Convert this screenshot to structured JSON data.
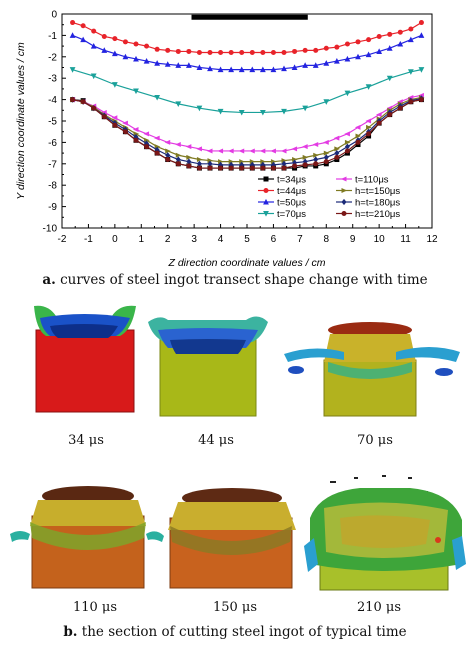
{
  "figure": {
    "caption_a_prefix": "a.",
    "caption_a_text": "curves of steel ingot transect shape change with time",
    "caption_b_prefix": "b.",
    "caption_b_text": "the section of cutting steel ingot of typical time",
    "panel_times": [
      "34 μs",
      "44 μs",
      "70 μs",
      "110 μs",
      "150 μs",
      "210 μs"
    ]
  },
  "chart_data": {
    "type": "line",
    "xlabel": "Z direction coordinate values / cm",
    "ylabel": "Y direction coordinate values / cm",
    "xlim": [
      -2,
      12
    ],
    "ylim": [
      -10,
      0
    ],
    "xticks": [
      -2,
      -1,
      0,
      1,
      2,
      3,
      4,
      5,
      6,
      7,
      8,
      9,
      10,
      11,
      12
    ],
    "yticks": [
      0,
      -1,
      -2,
      -3,
      -4,
      -5,
      -6,
      -7,
      -8,
      -9,
      -10
    ],
    "grid": false,
    "legend_position": "bottom-right",
    "scale_bar": {
      "from_x": 2.9,
      "to_x": 7.3,
      "y": -0.15
    },
    "series": [
      {
        "name": "t=34μs",
        "color": "#000000",
        "marker": "square",
        "x": [
          -1.6,
          -1.2,
          -0.8,
          -0.4,
          0,
          0.4,
          0.8,
          1.2,
          1.6,
          2.0,
          2.4,
          2.8,
          3.2,
          3.6,
          4.0,
          4.4,
          4.8,
          5.2,
          5.6,
          6.0,
          6.4,
          6.8,
          7.2,
          7.6,
          8.0,
          8.4,
          8.8,
          9.2,
          9.6,
          10.0,
          10.4,
          10.8,
          11.2,
          11.6
        ],
        "y": [
          -4.0,
          -4.05,
          -4.4,
          -4.8,
          -5.2,
          -5.5,
          -5.9,
          -6.2,
          -6.5,
          -6.8,
          -7.0,
          -7.1,
          -7.2,
          -7.2,
          -7.2,
          -7.2,
          -7.2,
          -7.2,
          -7.2,
          -7.2,
          -7.2,
          -7.2,
          -7.1,
          -7.1,
          -7.0,
          -6.8,
          -6.5,
          -6.1,
          -5.7,
          -5.1,
          -4.7,
          -4.4,
          -4.1,
          -4.0
        ]
      },
      {
        "name": "t=44μs",
        "color": "#e8232a",
        "marker": "circle",
        "x": [
          -1.6,
          -1.2,
          -0.8,
          -0.4,
          0,
          0.4,
          0.8,
          1.2,
          1.6,
          2.0,
          2.4,
          2.8,
          3.2,
          3.6,
          4.0,
          4.4,
          4.8,
          5.2,
          5.6,
          6.0,
          6.4,
          6.8,
          7.2,
          7.6,
          8.0,
          8.4,
          8.8,
          9.2,
          9.6,
          10.0,
          10.4,
          10.8,
          11.2,
          11.6
        ],
        "y": [
          -0.4,
          -0.55,
          -0.8,
          -1.05,
          -1.15,
          -1.3,
          -1.4,
          -1.5,
          -1.65,
          -1.7,
          -1.75,
          -1.75,
          -1.8,
          -1.8,
          -1.8,
          -1.8,
          -1.8,
          -1.8,
          -1.8,
          -1.8,
          -1.8,
          -1.75,
          -1.7,
          -1.7,
          -1.6,
          -1.55,
          -1.4,
          -1.3,
          -1.2,
          -1.05,
          -0.95,
          -0.85,
          -0.7,
          -0.4
        ]
      },
      {
        "name": "t=50μs",
        "color": "#2323e0",
        "marker": "triangle",
        "x": [
          -1.6,
          -1.2,
          -0.8,
          -0.4,
          0,
          0.4,
          0.8,
          1.2,
          1.6,
          2.0,
          2.4,
          2.8,
          3.2,
          3.6,
          4.0,
          4.4,
          4.8,
          5.2,
          5.6,
          6.0,
          6.4,
          6.8,
          7.2,
          7.6,
          8.0,
          8.4,
          8.8,
          9.2,
          9.6,
          10.0,
          10.4,
          10.8,
          11.2,
          11.6
        ],
        "y": [
          -1.0,
          -1.2,
          -1.5,
          -1.7,
          -1.85,
          -2.0,
          -2.1,
          -2.2,
          -2.3,
          -2.35,
          -2.4,
          -2.4,
          -2.5,
          -2.55,
          -2.6,
          -2.6,
          -2.6,
          -2.6,
          -2.6,
          -2.6,
          -2.55,
          -2.5,
          -2.4,
          -2.4,
          -2.3,
          -2.2,
          -2.1,
          -2.0,
          -1.9,
          -1.75,
          -1.6,
          -1.4,
          -1.2,
          -1.0
        ]
      },
      {
        "name": "t=70μs",
        "color": "#1aa19a",
        "marker": "triangle-down",
        "x": [
          -1.6,
          -0.8,
          0,
          0.8,
          1.6,
          2.4,
          3.2,
          4.0,
          4.8,
          5.6,
          6.4,
          7.2,
          8.0,
          8.8,
          9.6,
          10.4,
          11.2,
          11.6
        ],
        "y": [
          -2.6,
          -2.9,
          -3.3,
          -3.6,
          -3.9,
          -4.2,
          -4.4,
          -4.55,
          -4.6,
          -4.6,
          -4.55,
          -4.4,
          -4.1,
          -3.7,
          -3.4,
          -3.0,
          -2.7,
          -2.6
        ]
      },
      {
        "name": "t=110μs",
        "color": "#e33be3",
        "marker": "tri-left",
        "x": [
          -1.6,
          -1.2,
          -0.8,
          -0.4,
          0,
          0.4,
          0.8,
          1.2,
          1.6,
          2.0,
          2.4,
          2.8,
          3.2,
          3.6,
          4.0,
          4.4,
          4.8,
          5.2,
          5.6,
          6.0,
          6.4,
          6.8,
          7.2,
          7.6,
          8.0,
          8.4,
          8.8,
          9.2,
          9.6,
          10.0,
          10.4,
          10.8,
          11.2,
          11.6
        ],
        "y": [
          -4.0,
          -4.1,
          -4.3,
          -4.6,
          -4.85,
          -5.1,
          -5.4,
          -5.6,
          -5.8,
          -6.0,
          -6.1,
          -6.2,
          -6.3,
          -6.4,
          -6.4,
          -6.4,
          -6.4,
          -6.4,
          -6.4,
          -6.4,
          -6.4,
          -6.3,
          -6.2,
          -6.1,
          -6.0,
          -5.8,
          -5.6,
          -5.3,
          -5.0,
          -4.7,
          -4.4,
          -4.1,
          -3.9,
          -3.8
        ]
      },
      {
        "name": "h=t=150μs",
        "color": "#7f7a22",
        "marker": "tri-right",
        "x": [
          -1.6,
          -1.2,
          -0.8,
          -0.4,
          0,
          0.4,
          0.8,
          1.2,
          1.6,
          2.0,
          2.4,
          2.8,
          3.2,
          3.6,
          4.0,
          4.4,
          4.8,
          5.2,
          5.6,
          6.0,
          6.4,
          6.8,
          7.2,
          7.6,
          8.0,
          8.4,
          8.8,
          9.2,
          9.6,
          10.0,
          10.4,
          10.8,
          11.2,
          11.6
        ],
        "y": [
          -4.0,
          -4.1,
          -4.35,
          -4.7,
          -5.0,
          -5.3,
          -5.6,
          -5.9,
          -6.2,
          -6.4,
          -6.6,
          -6.7,
          -6.8,
          -6.85,
          -6.9,
          -6.9,
          -6.9,
          -6.9,
          -6.9,
          -6.9,
          -6.85,
          -6.8,
          -6.7,
          -6.6,
          -6.5,
          -6.3,
          -6.0,
          -5.7,
          -5.3,
          -4.9,
          -4.5,
          -4.2,
          -4.0,
          -3.9
        ]
      },
      {
        "name": "h=t=180μs",
        "color": "#1b2a78",
        "marker": "diamond",
        "x": [
          -1.6,
          -1.2,
          -0.8,
          -0.4,
          0,
          0.4,
          0.8,
          1.2,
          1.6,
          2.0,
          2.4,
          2.8,
          3.2,
          3.6,
          4.0,
          4.4,
          4.8,
          5.2,
          5.6,
          6.0,
          6.4,
          6.8,
          7.2,
          7.6,
          8.0,
          8.4,
          8.8,
          9.2,
          9.6,
          10.0,
          10.4,
          10.8,
          11.2,
          11.6
        ],
        "y": [
          -4.0,
          -4.1,
          -4.4,
          -4.75,
          -5.1,
          -5.4,
          -5.75,
          -6.05,
          -6.35,
          -6.6,
          -6.8,
          -6.9,
          -7.0,
          -7.0,
          -7.05,
          -7.05,
          -7.05,
          -7.05,
          -7.05,
          -7.05,
          -7.0,
          -6.95,
          -6.9,
          -6.8,
          -6.7,
          -6.5,
          -6.2,
          -5.9,
          -5.5,
          -5.0,
          -4.6,
          -4.3,
          -4.05,
          -3.95
        ]
      },
      {
        "name": "h=t=210μs",
        "color": "#7a1717",
        "marker": "circle",
        "x": [
          -1.6,
          -1.2,
          -0.8,
          -0.4,
          0,
          0.4,
          0.8,
          1.2,
          1.6,
          2.0,
          2.4,
          2.8,
          3.2,
          3.6,
          4.0,
          4.4,
          4.8,
          5.2,
          5.6,
          6.0,
          6.4,
          6.8,
          7.2,
          7.6,
          8.0,
          8.4,
          8.8,
          9.2,
          9.6,
          10.0,
          10.4,
          10.8,
          11.2,
          11.6
        ],
        "y": [
          -4.0,
          -4.1,
          -4.4,
          -4.8,
          -5.2,
          -5.5,
          -5.9,
          -6.2,
          -6.5,
          -6.8,
          -7.0,
          -7.1,
          -7.2,
          -7.2,
          -7.2,
          -7.2,
          -7.2,
          -7.2,
          -7.2,
          -7.2,
          -7.2,
          -7.1,
          -7.05,
          -7.0,
          -6.9,
          -6.7,
          -6.4,
          -6.0,
          -5.6,
          -5.1,
          -4.7,
          -4.4,
          -4.1,
          -4.0
        ]
      }
    ]
  }
}
